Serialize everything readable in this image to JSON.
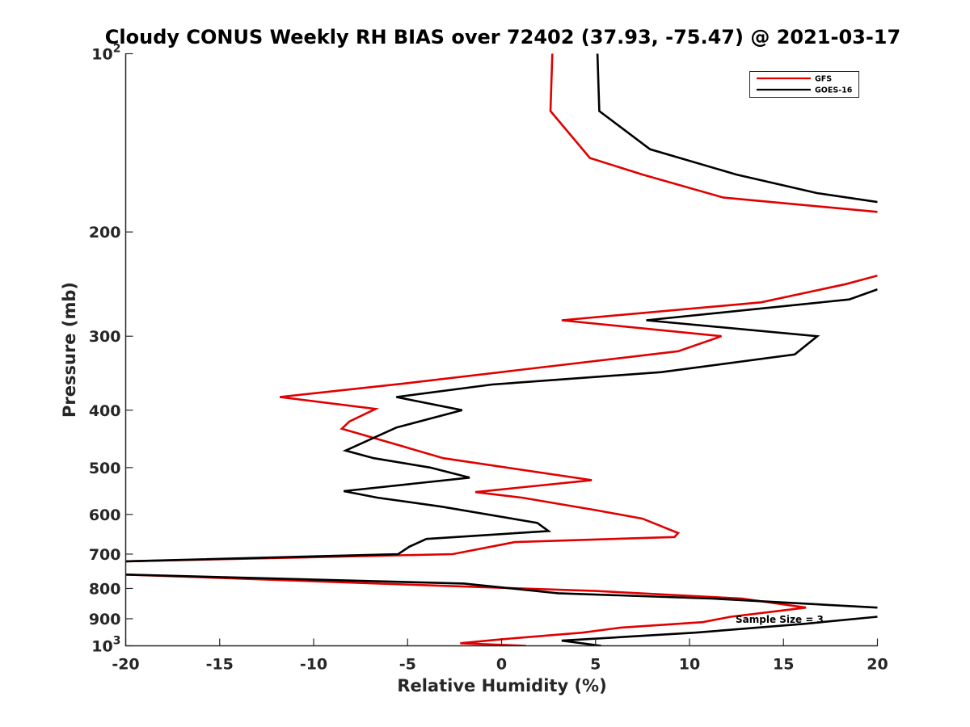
{
  "chart_data": {
    "type": "line",
    "title": "Cloudy CONUS Weekly RH BIAS over 72402 (37.93, -75.47) @ 2021-03-17",
    "xlabel": "Relative Humidity (%)",
    "ylabel": "Pressure (mb)",
    "xlim": [
      -20,
      20
    ],
    "ylim": [
      100,
      1000
    ],
    "y_scale": "log",
    "y_reversed": true,
    "grid": false,
    "legend_position": "top-right",
    "x_ticks": [
      "-20",
      "-15",
      "-10",
      "-5",
      "0",
      "5",
      "10",
      "15",
      "20"
    ],
    "y_ticks": [
      {
        "value": 100,
        "label": "10",
        "exp": "2"
      },
      {
        "value": 200,
        "label": "200",
        "exp": ""
      },
      {
        "value": 300,
        "label": "300",
        "exp": ""
      },
      {
        "value": 400,
        "label": "400",
        "exp": ""
      },
      {
        "value": 500,
        "label": "500",
        "exp": ""
      },
      {
        "value": 600,
        "label": "600",
        "exp": ""
      },
      {
        "value": 700,
        "label": "700",
        "exp": ""
      },
      {
        "value": 800,
        "label": "800",
        "exp": ""
      },
      {
        "value": 900,
        "label": "900",
        "exp": ""
      },
      {
        "value": 1000,
        "label": "10",
        "exp": "3"
      }
    ],
    "annotation": "Sample Size = 3",
    "series": [
      {
        "name": "GFS",
        "color": "#e00000",
        "segments": [
          [
            [
              2.7,
              100
            ],
            [
              2.6,
              125
            ],
            [
              4.7,
              150
            ],
            [
              7.5,
              160
            ],
            [
              11.8,
              175
            ],
            [
              20,
              185
            ]
          ],
          [
            [
              20,
              237
            ],
            [
              18.3,
              245
            ],
            [
              13.8,
              263
            ],
            [
              3.2,
              282
            ],
            [
              11.7,
              300
            ],
            [
              9.4,
              318
            ],
            [
              -5,
              360
            ],
            [
              -11.8,
              380
            ],
            [
              -6.7,
              398
            ],
            [
              -8.1,
              418
            ],
            [
              -8.5,
              430
            ],
            [
              -5.3,
              460
            ],
            [
              -3.1,
              482
            ],
            [
              4.8,
              525
            ],
            [
              -1.4,
              550
            ],
            [
              1.1,
              562
            ],
            [
              5,
              590
            ],
            [
              7.5,
              610
            ],
            [
              9.4,
              645
            ],
            [
              9.2,
              655
            ],
            [
              0.7,
              668
            ],
            [
              -2.6,
              700
            ],
            [
              -20,
              720
            ]
          ],
          [
            [
              -20,
              758
            ],
            [
              -5,
              788
            ],
            [
              5,
              808
            ],
            [
              12.8,
              832
            ],
            [
              16.2,
              862
            ],
            [
              12.2,
              893
            ],
            [
              10.7,
              912
            ],
            [
              6.3,
              932
            ],
            [
              4.3,
              950
            ],
            [
              0,
              975
            ],
            [
              -2.2,
              990
            ],
            [
              1.3,
              1000
            ]
          ]
        ]
      },
      {
        "name": "GOES-16",
        "color": "#000000",
        "segments": [
          [
            [
              5.1,
              100
            ],
            [
              5.2,
              125
            ],
            [
              7.9,
              145
            ],
            [
              12.5,
              160
            ],
            [
              16.8,
              172
            ],
            [
              20,
              178
            ]
          ],
          [
            [
              20,
              250
            ],
            [
              18.5,
              260
            ],
            [
              7.7,
              282
            ],
            [
              16.8,
              300
            ],
            [
              15.6,
              322
            ],
            [
              8.5,
              345
            ],
            [
              -0.5,
              362
            ],
            [
              -5.6,
              380
            ],
            [
              -2.1,
              400
            ],
            [
              -5.6,
              428
            ],
            [
              -8.3,
              468
            ],
            [
              -6.8,
              482
            ],
            [
              -3.8,
              500
            ],
            [
              -1.7,
              520
            ],
            [
              -8.4,
              548
            ],
            [
              -6.6,
              562
            ],
            [
              -3.2,
              582
            ],
            [
              1.9,
              620
            ],
            [
              2.5,
              640
            ],
            [
              -4,
              660
            ],
            [
              -4.9,
              680
            ],
            [
              -5.5,
              700
            ],
            [
              -20,
              720
            ]
          ],
          [
            [
              -20,
              758
            ],
            [
              -2,
              785
            ],
            [
              3,
              815
            ],
            [
              11.2,
              832
            ],
            [
              20,
              862
            ]
          ],
          [
            [
              20,
              893
            ],
            [
              16.1,
              918
            ],
            [
              10.3,
              950
            ],
            [
              3.2,
              980
            ],
            [
              5.3,
              1000
            ]
          ]
        ]
      }
    ]
  }
}
